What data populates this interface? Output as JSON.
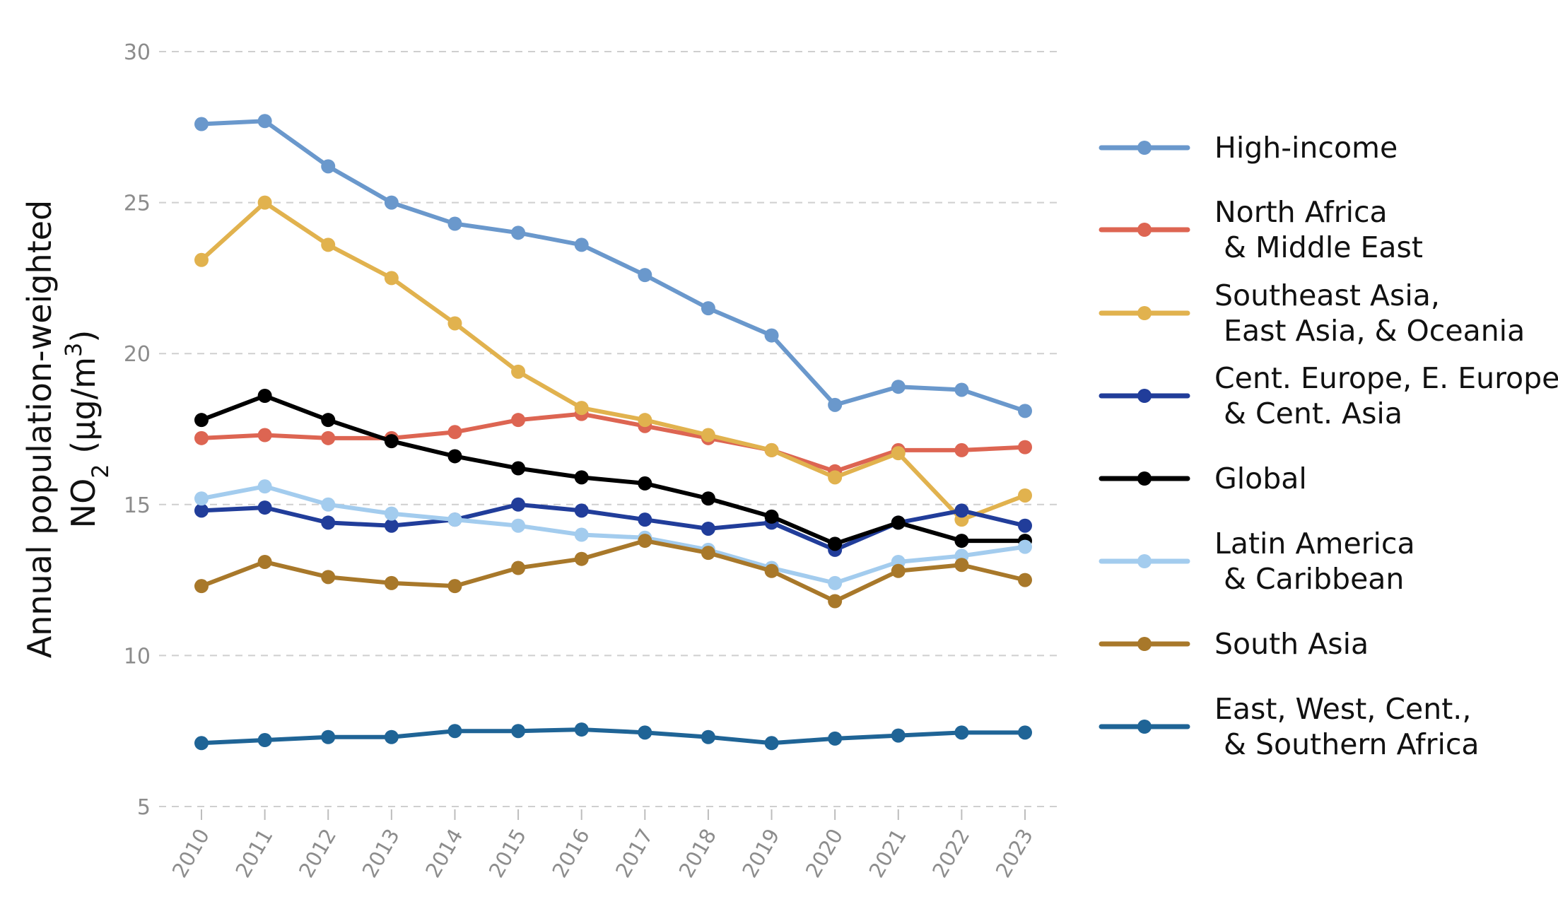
{
  "chart_data": {
    "type": "line",
    "title": "",
    "xlabel": "",
    "ylabel_line1": "Annual population-weighted",
    "ylabel_line2_prefix": "NO",
    "ylabel_line2_sub": "2",
    "ylabel_line2_mid": " (µg/m",
    "ylabel_line2_sup": "3",
    "ylabel_line2_end": ")",
    "ylim": [
      5,
      30
    ],
    "yticks": [
      5,
      10,
      15,
      20,
      25,
      30
    ],
    "ytick_labels": [
      "5",
      "10",
      "15",
      "20",
      "25",
      "30"
    ],
    "grid": true,
    "legend_position": "right",
    "x": [
      2010,
      2011,
      2012,
      2013,
      2014,
      2015,
      2016,
      2017,
      2018,
      2019,
      2020,
      2021,
      2022,
      2023
    ],
    "x_labels": [
      "2010",
      "2011",
      "2012",
      "2013",
      "2014",
      "2015",
      "2016",
      "2017",
      "2018",
      "2019",
      "2020",
      "2021",
      "2022",
      "2023"
    ],
    "series": [
      {
        "name": "High-income",
        "legend_lines": [
          "High-income"
        ],
        "color": "#6a98cc",
        "values": [
          27.6,
          27.7,
          26.2,
          25.0,
          24.3,
          24.0,
          23.6,
          22.6,
          21.5,
          20.6,
          18.3,
          18.9,
          18.8,
          18.1
        ]
      },
      {
        "name": "North Africa & Middle East",
        "legend_lines": [
          "North Africa",
          " & Middle East"
        ],
        "color": "#dd6552",
        "values": [
          17.2,
          17.3,
          17.2,
          17.2,
          17.4,
          17.8,
          18.0,
          17.6,
          17.2,
          16.8,
          16.1,
          16.8,
          16.8,
          16.9
        ]
      },
      {
        "name": "Southeast Asia, East Asia, & Oceania",
        "legend_lines": [
          "Southeast Asia,",
          " East Asia, & Oceania"
        ],
        "color": "#e1b24e",
        "values": [
          23.1,
          25.0,
          23.6,
          22.5,
          21.0,
          19.4,
          18.2,
          17.8,
          17.3,
          16.8,
          15.9,
          16.7,
          14.5,
          15.3
        ]
      },
      {
        "name": "Cent. Europe, E. Europe, & Cent. Asia",
        "legend_lines": [
          "Cent. Europe, E. Europe,",
          " & Cent. Asia"
        ],
        "color": "#213d9a",
        "values": [
          14.8,
          14.9,
          14.4,
          14.3,
          14.5,
          15.0,
          14.8,
          14.5,
          14.2,
          14.4,
          13.5,
          14.4,
          14.8,
          14.3
        ]
      },
      {
        "name": "Global",
        "legend_lines": [
          "Global"
        ],
        "color": "#000000",
        "values": [
          17.8,
          18.6,
          17.8,
          17.1,
          16.6,
          16.2,
          15.9,
          15.7,
          15.2,
          14.6,
          13.7,
          14.4,
          13.8,
          13.8
        ]
      },
      {
        "name": "Latin America & Caribbean",
        "legend_lines": [
          "Latin America",
          " & Caribbean"
        ],
        "color": "#a3ccee",
        "values": [
          15.2,
          15.6,
          15.0,
          14.7,
          14.5,
          14.3,
          14.0,
          13.9,
          13.5,
          12.9,
          12.4,
          13.1,
          13.3,
          13.6
        ]
      },
      {
        "name": "South Asia",
        "legend_lines": [
          "South Asia"
        ],
        "color": "#a8782a",
        "values": [
          12.3,
          13.1,
          12.6,
          12.4,
          12.3,
          12.9,
          13.2,
          13.8,
          13.4,
          12.8,
          11.8,
          12.8,
          13.0,
          12.5
        ]
      },
      {
        "name": "East, West, Cent., & Southern Africa",
        "legend_lines": [
          "East, West, Cent.,",
          " & Southern Africa"
        ],
        "color": "#1f6496",
        "values": [
          7.1,
          7.2,
          7.3,
          7.3,
          7.5,
          7.5,
          7.55,
          7.45,
          7.3,
          7.1,
          7.25,
          7.35,
          7.45,
          7.45
        ]
      }
    ]
  }
}
